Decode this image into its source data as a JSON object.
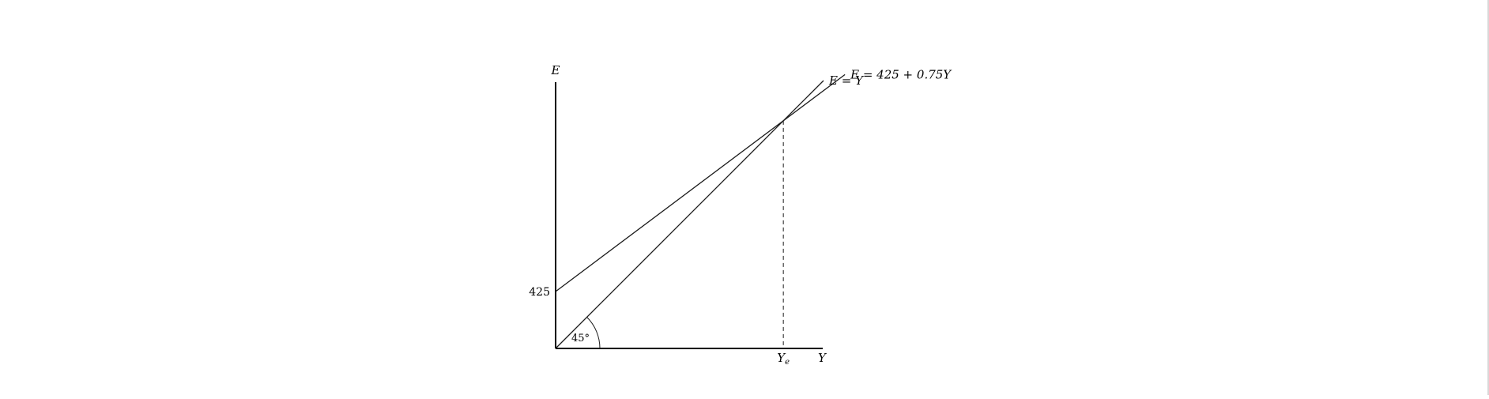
{
  "chart_data": {
    "type": "line",
    "title": "",
    "xlabel": "Y",
    "ylabel": "E",
    "xlim": [
      0,
      2000
    ],
    "ylim": [
      0,
      2000
    ],
    "grid": false,
    "legend": "none",
    "series": [
      {
        "name": "E = Y",
        "intercept": 0,
        "slope": 1,
        "x": [
          0,
          2000
        ],
        "y": [
          0,
          2000
        ]
      },
      {
        "name": "E = 425 + 0.75Y",
        "intercept": 425,
        "slope": 0.75,
        "x": [
          0,
          2160
        ],
        "y": [
          425,
          2045
        ]
      }
    ],
    "y_tick_labels": [
      "425"
    ],
    "x_tick_labels": [
      "Ye"
    ],
    "equilibrium": {
      "x": 1700,
      "y": 1700,
      "label": "Ye"
    },
    "angle_label": "45°",
    "colors": {
      "lines": "#1a1a1a",
      "axes": "#000000"
    }
  }
}
